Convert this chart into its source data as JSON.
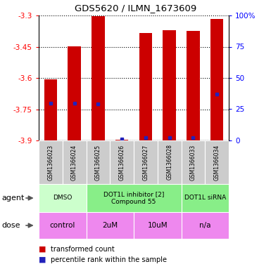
{
  "title": "GDS5620 / ILMN_1673609",
  "samples": [
    "GSM1366023",
    "GSM1366024",
    "GSM1366025",
    "GSM1366026",
    "GSM1366027",
    "GSM1366028",
    "GSM1366033",
    "GSM1366034"
  ],
  "red_values": [
    -3.607,
    -3.447,
    -3.303,
    -3.898,
    -3.383,
    -3.372,
    -3.373,
    -3.318
  ],
  "blue_pct": [
    30,
    30,
    29,
    1,
    2,
    2,
    2,
    37
  ],
  "y_min": -3.9,
  "y_max": -3.3,
  "y_ticks": [
    -3.9,
    -3.75,
    -3.6,
    -3.45,
    -3.3
  ],
  "right_ticks": [
    0,
    25,
    50,
    75,
    100
  ],
  "bar_color": "#cc0000",
  "blue_color": "#2222bb",
  "bar_width": 0.55,
  "agents": [
    {
      "label": "DMSO",
      "start": 0,
      "end": 2,
      "color": "#ccffcc"
    },
    {
      "label": "DOT1L inhibitor [2]\nCompound 55",
      "start": 2,
      "end": 6,
      "color": "#88ee88"
    },
    {
      "label": "DOT1L siRNA",
      "start": 6,
      "end": 8,
      "color": "#88ee88"
    }
  ],
  "doses": [
    {
      "label": "control",
      "start": 0,
      "end": 2
    },
    {
      "label": "2uM",
      "start": 2,
      "end": 4
    },
    {
      "label": "10uM",
      "start": 4,
      "end": 6
    },
    {
      "label": "n/a",
      "start": 6,
      "end": 8
    }
  ],
  "dose_color": "#ee88ee",
  "sample_bg": "#cccccc",
  "legend_red": "transformed count",
  "legend_blue": "percentile rank within the sample",
  "label_agent": "agent",
  "label_dose": "dose"
}
